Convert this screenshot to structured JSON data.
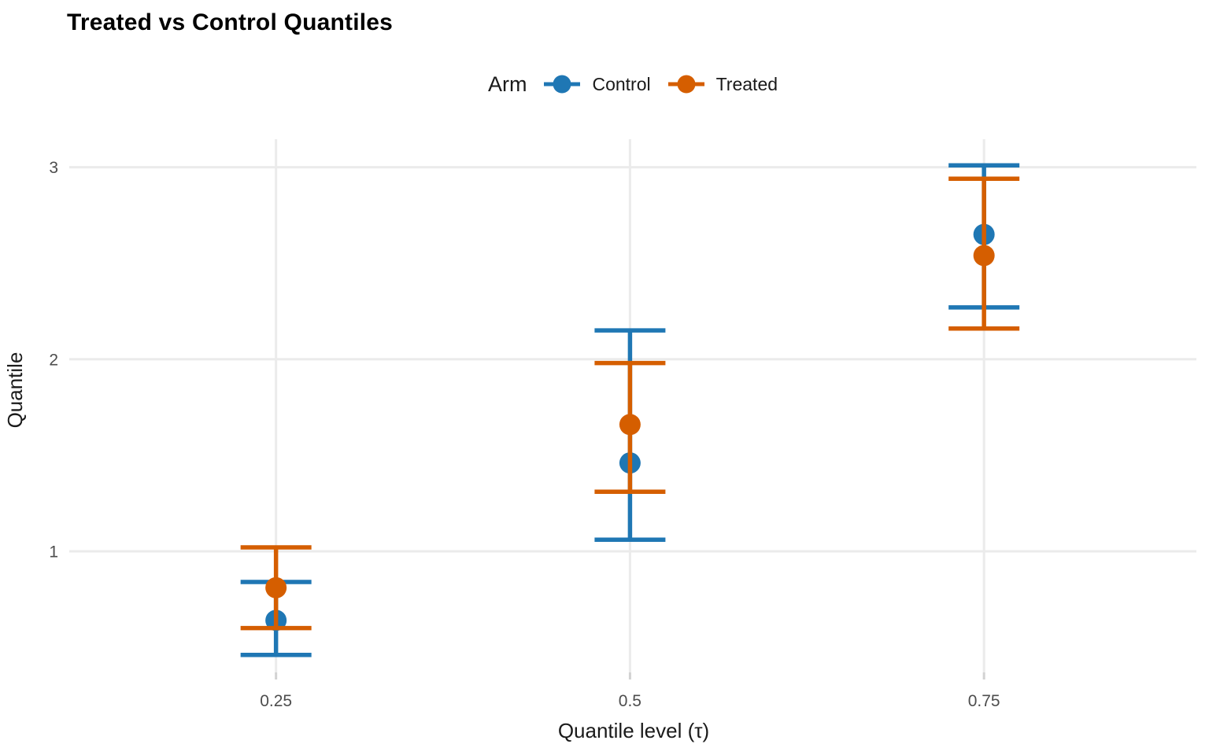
{
  "header": {
    "title": "Treated vs Control Quantiles"
  },
  "legend": {
    "title": "Arm",
    "position": "top",
    "items": [
      {
        "label": "Control",
        "color": "#1f77b4"
      },
      {
        "label": "Treated",
        "color": "#d55e00"
      }
    ]
  },
  "axes": {
    "x": {
      "label": "Quantile level (τ)",
      "tick_values": [
        0.25,
        0.5,
        0.75
      ],
      "tick_labels": [
        "0.25",
        "0.5",
        "0.75"
      ],
      "range": [
        0.104,
        0.9
      ]
    },
    "y": {
      "label": "Quantile",
      "tick_values": [
        1,
        2,
        3
      ],
      "tick_labels": [
        "1",
        "2",
        "3"
      ],
      "range": [
        0.369,
        3.146
      ]
    }
  },
  "chart_data": {
    "type": "scatter",
    "subtype": "pointrange-with-error-caps",
    "title": "Treated vs Control Quantiles",
    "xlabel": "Quantile level (τ)",
    "ylabel": "Quantile",
    "x": [
      0.25,
      0.5,
      0.75
    ],
    "series": [
      {
        "name": "Control",
        "color": "#1f77b4",
        "est": [
          0.64,
          1.46,
          2.65
        ],
        "lo": [
          0.46,
          1.06,
          2.27
        ],
        "hi": [
          0.84,
          2.15,
          3.01
        ]
      },
      {
        "name": "Treated",
        "color": "#d55e00",
        "est": [
          0.81,
          1.66,
          2.54
        ],
        "lo": [
          0.6,
          1.31,
          2.16
        ],
        "hi": [
          1.02,
          1.98,
          2.94
        ]
      }
    ],
    "xlim": [
      0.104,
      0.9
    ],
    "ylim": [
      0.369,
      3.146
    ],
    "grid": "major-only",
    "legend_position": "top"
  },
  "style": {
    "background": "#ffffff",
    "grid_color": "#ebebeb",
    "axis_tick_color": "#d2d2d2",
    "tick_text_color": "#4d4d4d",
    "axis_title_color": "#1a1a1a",
    "control_color": "#1f77b4",
    "treated_color": "#d55e00"
  }
}
